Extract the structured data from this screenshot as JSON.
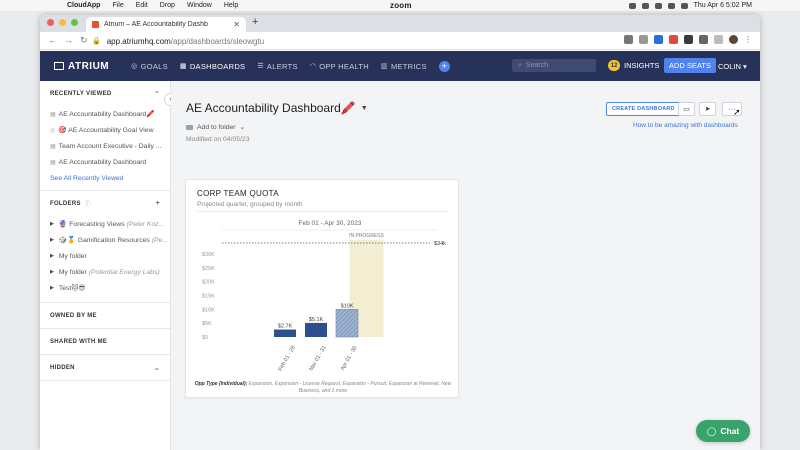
{
  "menubar": {
    "app_name": "CloudApp",
    "items": [
      "File",
      "Edit",
      "Drop",
      "Window",
      "Help"
    ],
    "center_app": "zoom",
    "clock": "Thu Apr 6  5:02 PM"
  },
  "browser": {
    "tab_title": "Atrium – AE Accountability Dashb",
    "url_host": "app.atriumhq.com",
    "url_path": "/app/dashboards/sleowgtu"
  },
  "nav": {
    "logo": "ATRIUM",
    "links": [
      {
        "label": "GOALS",
        "icon": "goals-icon"
      },
      {
        "label": "DASHBOARDS",
        "icon": "dashboards-icon"
      },
      {
        "label": "ALERTS",
        "icon": "alerts-icon"
      },
      {
        "label": "OPP HEALTH",
        "icon": "opp-health-icon"
      },
      {
        "label": "METRICS",
        "icon": "metrics-icon"
      }
    ],
    "search_placeholder": "Search",
    "insights_count": "12",
    "insights_label": "INSIGHTS",
    "add_seats": "ADD SEATS",
    "user": "COLIN"
  },
  "sidebar": {
    "recent_header": "RECENTLY VIEWED",
    "recent_items": [
      "AE Accountability Dashboard🖍️",
      "🎯 AE Accountability Goal View",
      "Team Account Executive - Daily ...",
      "AE Accountability Dashboard"
    ],
    "see_all": "See All Recently Viewed",
    "folders_header": "FOLDERS",
    "folders": [
      {
        "label": "🔮 Forecasting Views",
        "owner": "(Peter Koz..."
      },
      {
        "label": "🎲🏅 Gamification Resources",
        "owner": "(Pe..."
      },
      {
        "label": "My folder",
        "owner": ""
      },
      {
        "label": "My folder",
        "owner": "(Potential Energy Labs)"
      },
      {
        "label": "Test🐱😎",
        "owner": ""
      }
    ],
    "owned_header": "OWNED BY ME",
    "shared_header": "SHARED WITH ME",
    "hidden_header": "HIDDEN"
  },
  "page": {
    "title": "AE Accountability Dashboard🖍️",
    "add_to_folder": "Add to folder",
    "modified": "Modified on 04/05/23",
    "create_dashboard": "CREATE DASHBOARD",
    "howto_link": "How to be amazing with dashboards",
    "more_label": "···"
  },
  "card": {
    "title": "CORP TEAM QUOTA",
    "subtitle": "Projected quarter, grouped by month",
    "footnote_label": "Opp Type (Individual):",
    "footnote_text": "Expansion, Expansion - License Request, Expansion - Pursuit, Expansion at Renewal, New Business, and 1 more"
  },
  "chart_data": {
    "type": "bar",
    "title": "Feb 01 - Apr 30, 2023",
    "categories": [
      "Feb 01 - 28",
      "Mar 01 - 31",
      "Apr 01 - 30"
    ],
    "values": [
      2700,
      5100,
      10000
    ],
    "value_labels": [
      "$2.7K",
      "$5.1K",
      "$10K"
    ],
    "projected": [
      false,
      false,
      true
    ],
    "in_progress_label": "IN PROGRESS",
    "target": 34000,
    "target_label": "$34k",
    "yticks": [
      0,
      5000,
      10000,
      15000,
      20000,
      25000,
      30000
    ],
    "ytick_labels": [
      "$0",
      "$5K",
      "$10K",
      "$15K",
      "$20K",
      "$25K",
      "$30K"
    ],
    "ylim": [
      0,
      34000
    ]
  },
  "chat": {
    "label": "Chat"
  },
  "colors": {
    "nav_bg": "#27325b",
    "accent": "#4f84f0",
    "bar": "#2e4f8e",
    "in_progress": "#f3edd2",
    "chat": "#3aa36b"
  }
}
